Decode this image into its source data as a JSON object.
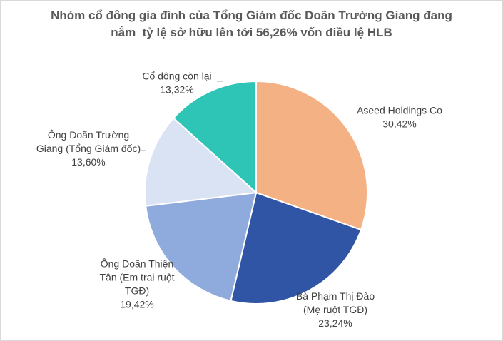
{
  "chart_data": {
    "type": "pie",
    "title_lines": [
      "Nhóm cổ đông gia đình của Tổng Giám đốc Doãn Trường Giang đang",
      "nắm  tỷ lệ sở hữu lên tới 56,26% vốn điều lệ HLB"
    ],
    "slices": [
      {
        "label_lines": [
          "Aseed Holdings Co"
        ],
        "value": 30.42,
        "value_label": "30,42%",
        "color": "#F4B183"
      },
      {
        "label_lines": [
          "Bà Phạm Thị Đào",
          "(Mẹ ruột TGĐ)"
        ],
        "value": 23.24,
        "value_label": "23,24%",
        "color": "#2F55A4"
      },
      {
        "label_lines": [
          "Ông Doãn Thiện",
          "Tân (Em trai ruột",
          "TGĐ)"
        ],
        "value": 19.42,
        "value_label": "19,42%",
        "color": "#8FAADC"
      },
      {
        "label_lines": [
          "Ông Doãn Trường",
          "Giang (Tổng Giám đốc)"
        ],
        "value": 13.6,
        "value_label": "13,60%",
        "color": "#DAE3F3"
      },
      {
        "label_lines": [
          "Cổ đông còn lại"
        ],
        "value": 13.32,
        "value_label": "13,32%",
        "color": "#2EC4B6"
      }
    ]
  }
}
